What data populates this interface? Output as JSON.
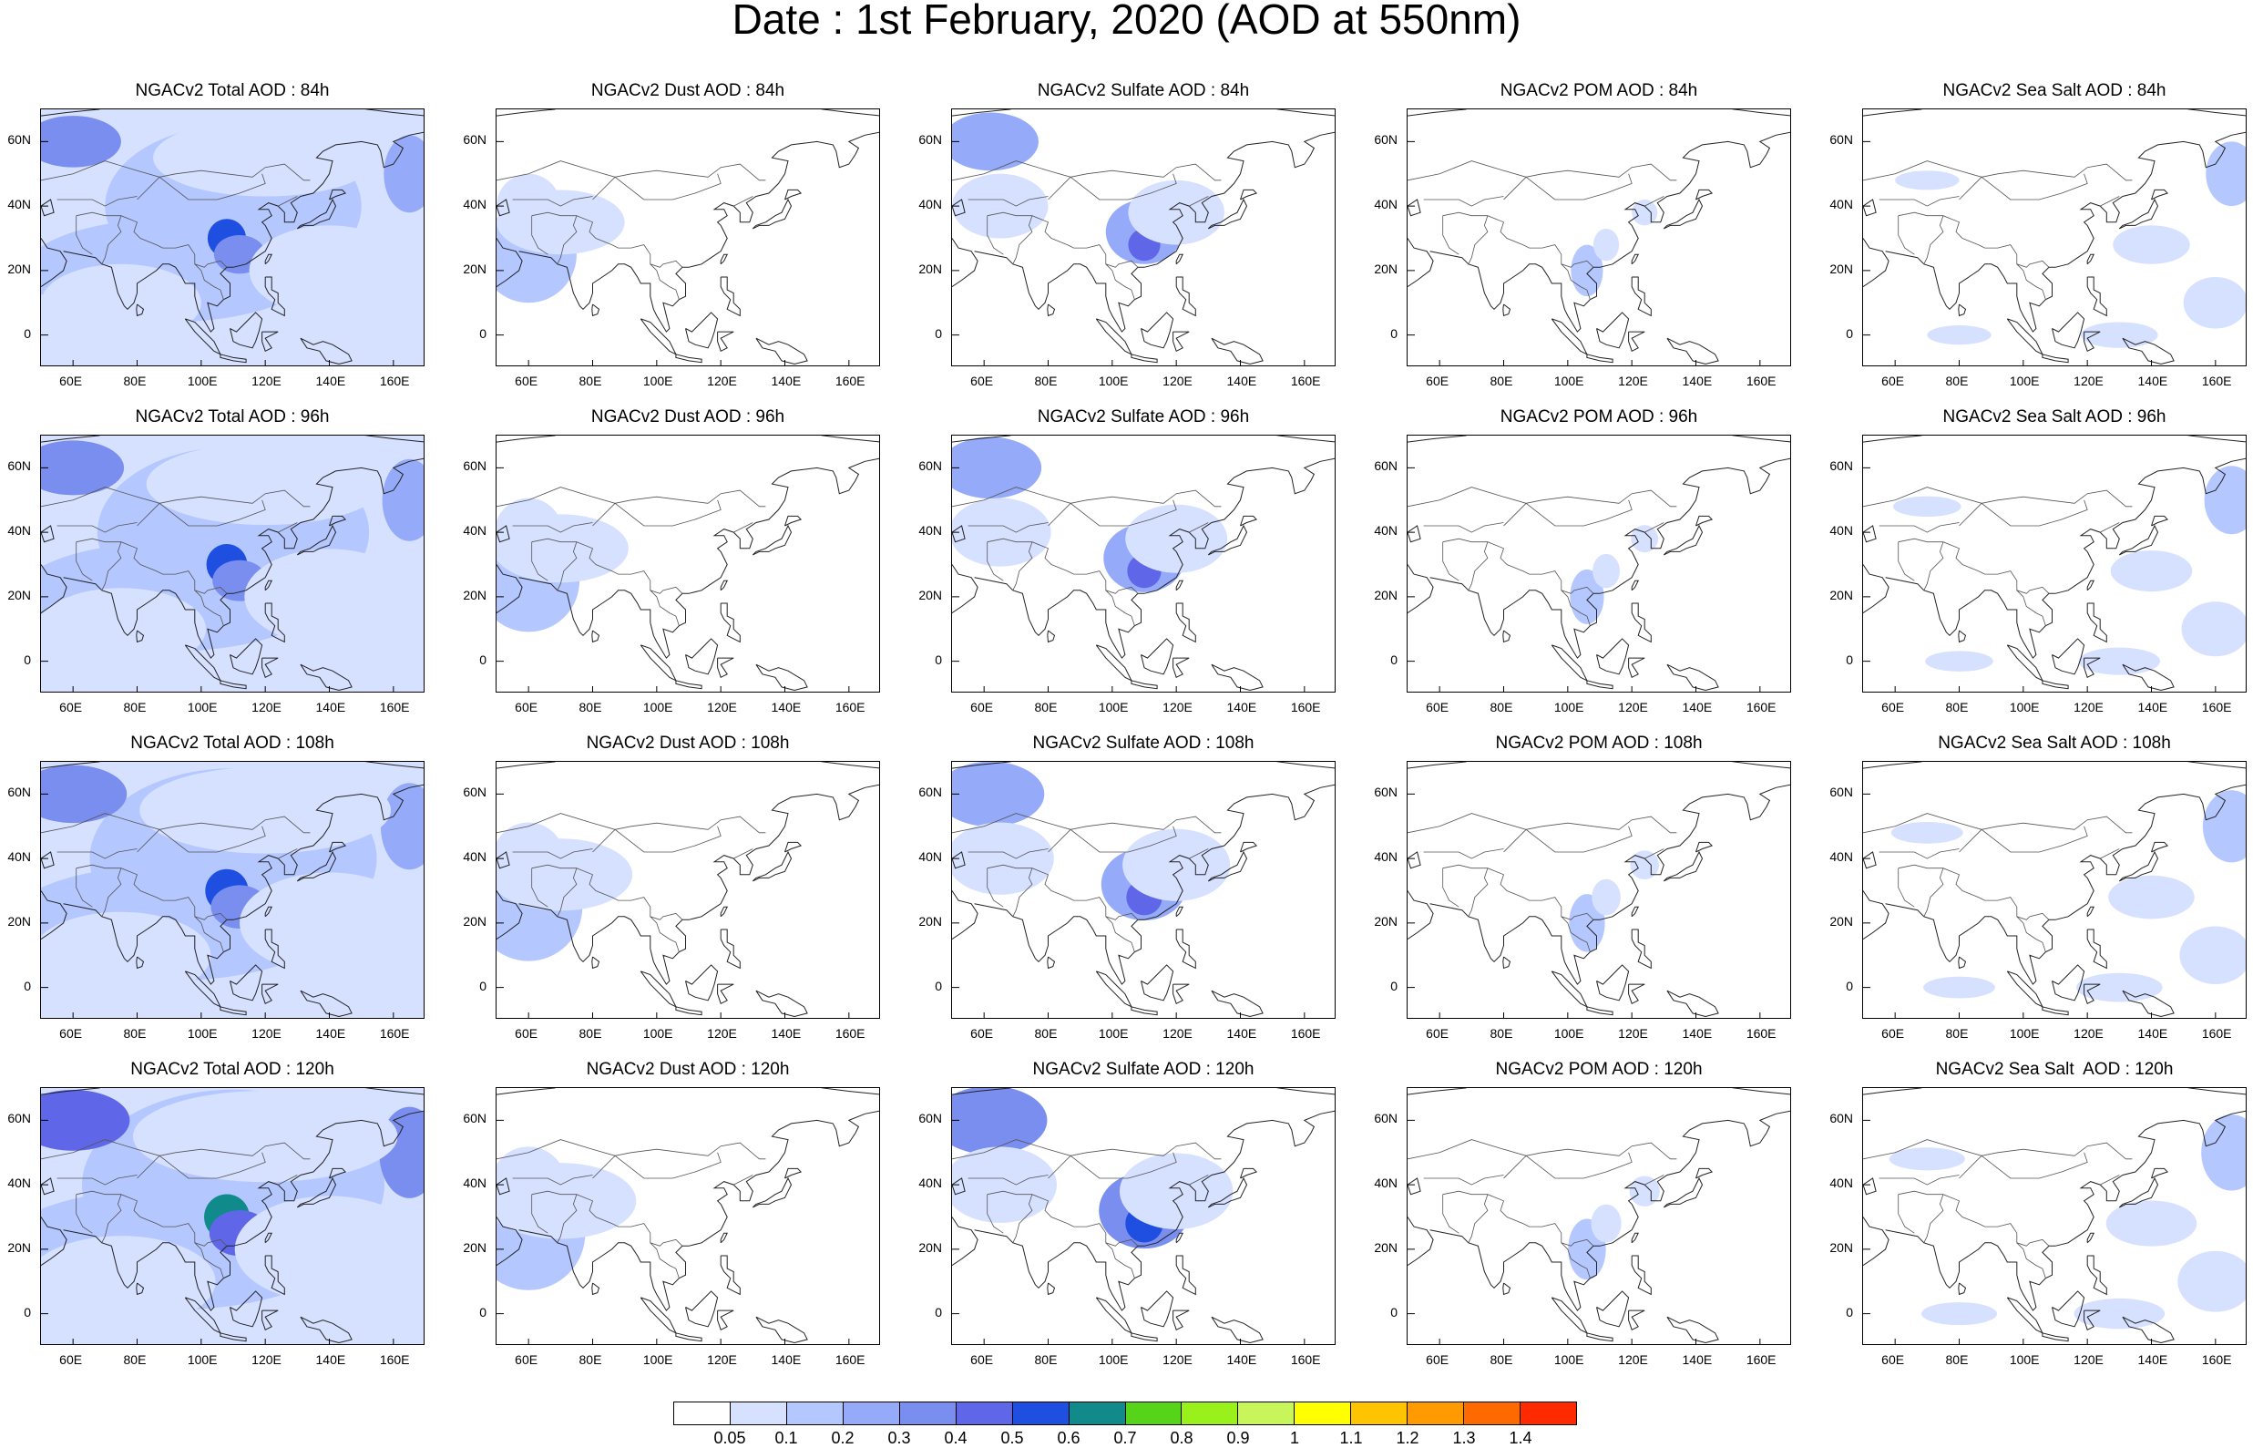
{
  "title": "Date : 1st February, 2020 (AOD at 550nm)",
  "map": {
    "lon_range": [
      50,
      170
    ],
    "lat_range": [
      -10,
      70
    ],
    "lon_ticks": [
      "60E",
      "80E",
      "100E",
      "120E",
      "140E",
      "160E"
    ],
    "lat_ticks": [
      "60N",
      "40N",
      "20N",
      "0"
    ]
  },
  "rows": [
    {
      "hour": "84h",
      "panels": [
        {
          "species": "total",
          "title": "NGACv2 Total AOD : 84h"
        },
        {
          "species": "dust",
          "title": "NGACv2 Dust AOD : 84h"
        },
        {
          "species": "sulfate",
          "title": "NGACv2 Sulfate AOD : 84h"
        },
        {
          "species": "pom",
          "title": "NGACv2 POM AOD : 84h"
        },
        {
          "species": "seasalt",
          "title": "NGACv2 Sea Salt AOD : 84h"
        }
      ]
    },
    {
      "hour": "96h",
      "panels": [
        {
          "species": "total",
          "title": "NGACv2 Total AOD : 96h"
        },
        {
          "species": "dust",
          "title": "NGACv2 Dust AOD : 96h"
        },
        {
          "species": "sulfate",
          "title": "NGACv2 Sulfate AOD : 96h"
        },
        {
          "species": "pom",
          "title": "NGACv2 POM AOD : 96h"
        },
        {
          "species": "seasalt",
          "title": "NGACv2 Sea Salt AOD : 96h"
        }
      ]
    },
    {
      "hour": "108h",
      "panels": [
        {
          "species": "total",
          "title": "NGACv2 Total AOD : 108h"
        },
        {
          "species": "dust",
          "title": "NGACv2 Dust AOD : 108h"
        },
        {
          "species": "sulfate",
          "title": "NGACv2 Sulfate AOD : 108h"
        },
        {
          "species": "pom",
          "title": "NGACv2 POM AOD : 108h"
        },
        {
          "species": "seasalt",
          "title": "NGACv2 Sea Salt AOD : 108h"
        }
      ]
    },
    {
      "hour": "120h",
      "panels": [
        {
          "species": "total",
          "title": "NGACv2 Total AOD : 120h"
        },
        {
          "species": "dust",
          "title": "NGACv2 Dust AOD : 120h"
        },
        {
          "species": "sulfate",
          "title": "NGACv2 Sulfate AOD : 120h"
        },
        {
          "species": "pom",
          "title": "NGACv2 POM AOD : 120h"
        },
        {
          "species": "seasalt",
          "title": "NGACv2 Sea Salt  AOD : 120h"
        }
      ]
    }
  ],
  "colorbar": {
    "labels": [
      "0.05",
      "0.1",
      "0.2",
      "0.3",
      "0.4",
      "0.5",
      "0.6",
      "0.7",
      "0.8",
      "0.9",
      "1",
      "1.1",
      "1.2",
      "1.3",
      "1.4"
    ],
    "colors": [
      "#ffffff",
      "#d6e0ff",
      "#b4c7ff",
      "#95abfa",
      "#7a8ef0",
      "#5f67e8",
      "#1f4fe0",
      "#108a8a",
      "#55d41a",
      "#99f01a",
      "#c8f55a",
      "#ffff00",
      "#ffc400",
      "#ff9a00",
      "#ff6a00",
      "#ff2a00"
    ]
  }
}
